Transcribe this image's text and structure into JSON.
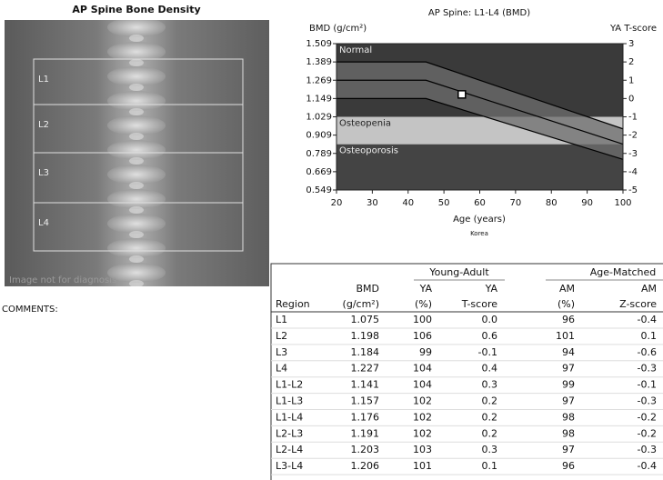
{
  "header": {
    "title": "AP Spine Bone Density"
  },
  "image": {
    "regions": [
      "L1",
      "L2",
      "L3",
      "L4"
    ],
    "watermark": "Image not for diagnosis"
  },
  "comments": {
    "label": "COMMENTS:"
  },
  "chart_data": {
    "type": "line",
    "title": "AP Spine: L1-L4 (BMD)",
    "y_label": "BMD (g/cm²)",
    "y2_label": "YA T-score",
    "x_label": "Age (years)",
    "subtitle": "Korea",
    "xlim": [
      20,
      100
    ],
    "xticks": [
      20,
      30,
      40,
      50,
      60,
      70,
      80,
      90,
      100
    ],
    "ylim": [
      0.549,
      1.509
    ],
    "yticks": [
      1.509,
      1.389,
      1.269,
      1.149,
      1.029,
      0.909,
      0.789,
      0.669,
      0.549
    ],
    "y2lim": [
      -5,
      3
    ],
    "y2ticks": [
      3,
      2,
      1,
      0,
      -1,
      -2,
      -3,
      -4,
      -5
    ],
    "zones": [
      {
        "name": "Normal",
        "from": 1.029,
        "to": 1.509,
        "color": "#3a3a3a"
      },
      {
        "name": "Osteopenia",
        "from": 0.849,
        "to": 1.029,
        "color": "#c4c4c4"
      },
      {
        "name": "Osteoporosis",
        "from": 0.549,
        "to": 0.849,
        "color": "#444444"
      }
    ],
    "series": [
      {
        "color": "#000000",
        "x": [
          20,
          45,
          100
        ],
        "values": [
          1.389,
          1.389,
          0.95
        ]
      },
      {
        "color": "#000000",
        "x": [
          20,
          45,
          100
        ],
        "values": [
          1.269,
          1.269,
          0.85
        ]
      },
      {
        "color": "#000000",
        "x": [
          20,
          45,
          100
        ],
        "values": [
          1.149,
          1.149,
          0.75
        ]
      }
    ],
    "band_color": "#6e6e6e",
    "marker": {
      "x": 55,
      "y": 1.176,
      "color": "#ffffff"
    }
  },
  "table": {
    "group_headers": [
      "Young-Adult",
      "Age-Matched"
    ],
    "header_top": [
      "BMD",
      "YA",
      "YA",
      "AM",
      "AM"
    ],
    "header_bottom": [
      "Region",
      "(g/cm²)",
      "(%)",
      "T-score",
      "(%)",
      "Z-score"
    ],
    "rows": [
      [
        "L1",
        "1.075",
        "100",
        "0.0",
        "96",
        "-0.4"
      ],
      [
        "L2",
        "1.198",
        "106",
        "0.6",
        "101",
        "0.1"
      ],
      [
        "L3",
        "1.184",
        "99",
        "-0.1",
        "94",
        "-0.6"
      ],
      [
        "L4",
        "1.227",
        "104",
        "0.4",
        "97",
        "-0.3"
      ],
      [
        "L1-L2",
        "1.141",
        "104",
        "0.3",
        "99",
        "-0.1"
      ],
      [
        "L1-L3",
        "1.157",
        "102",
        "0.2",
        "97",
        "-0.3"
      ],
      [
        "L1-L4",
        "1.176",
        "102",
        "0.2",
        "98",
        "-0.2"
      ],
      [
        "L2-L3",
        "1.191",
        "102",
        "0.2",
        "98",
        "-0.2"
      ],
      [
        "L2-L4",
        "1.203",
        "103",
        "0.3",
        "97",
        "-0.3"
      ],
      [
        "L3-L4",
        "1.206",
        "101",
        "0.1",
        "96",
        "-0.4"
      ]
    ]
  }
}
